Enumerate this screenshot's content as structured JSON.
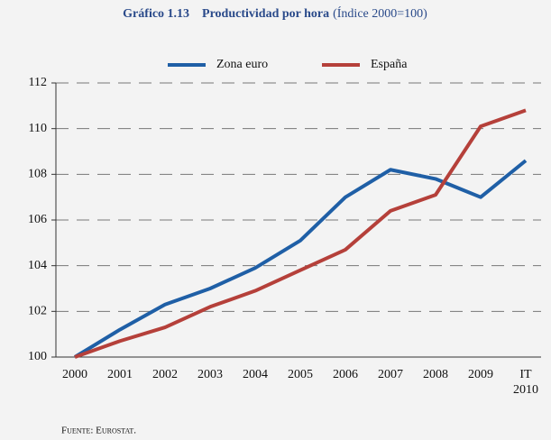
{
  "chart_data": {
    "type": "line",
    "title_number": "Gráfico 1.13",
    "title": "Productividad por hora",
    "title_note": "(Índice 2000=100)",
    "categories": [
      "2000",
      "2001",
      "2002",
      "2003",
      "2004",
      "2005",
      "2006",
      "2007",
      "2008",
      "2009",
      "IT 2010"
    ],
    "series": [
      {
        "name": "Zona euro",
        "color": "#1f5fa6",
        "values": [
          100,
          101.2,
          102.3,
          103.0,
          103.9,
          105.1,
          107.0,
          108.2,
          107.8,
          107.0,
          108.6
        ]
      },
      {
        "name": "España",
        "color": "#b5403a",
        "values": [
          100,
          100.7,
          101.3,
          102.2,
          102.9,
          103.8,
          104.7,
          106.4,
          107.1,
          110.1,
          110.8
        ]
      }
    ],
    "ylim": [
      100,
      112
    ],
    "yticks": [
      100,
      102,
      104,
      106,
      108,
      110,
      112
    ],
    "grid": true,
    "source": "Fuente: Eurostat."
  }
}
